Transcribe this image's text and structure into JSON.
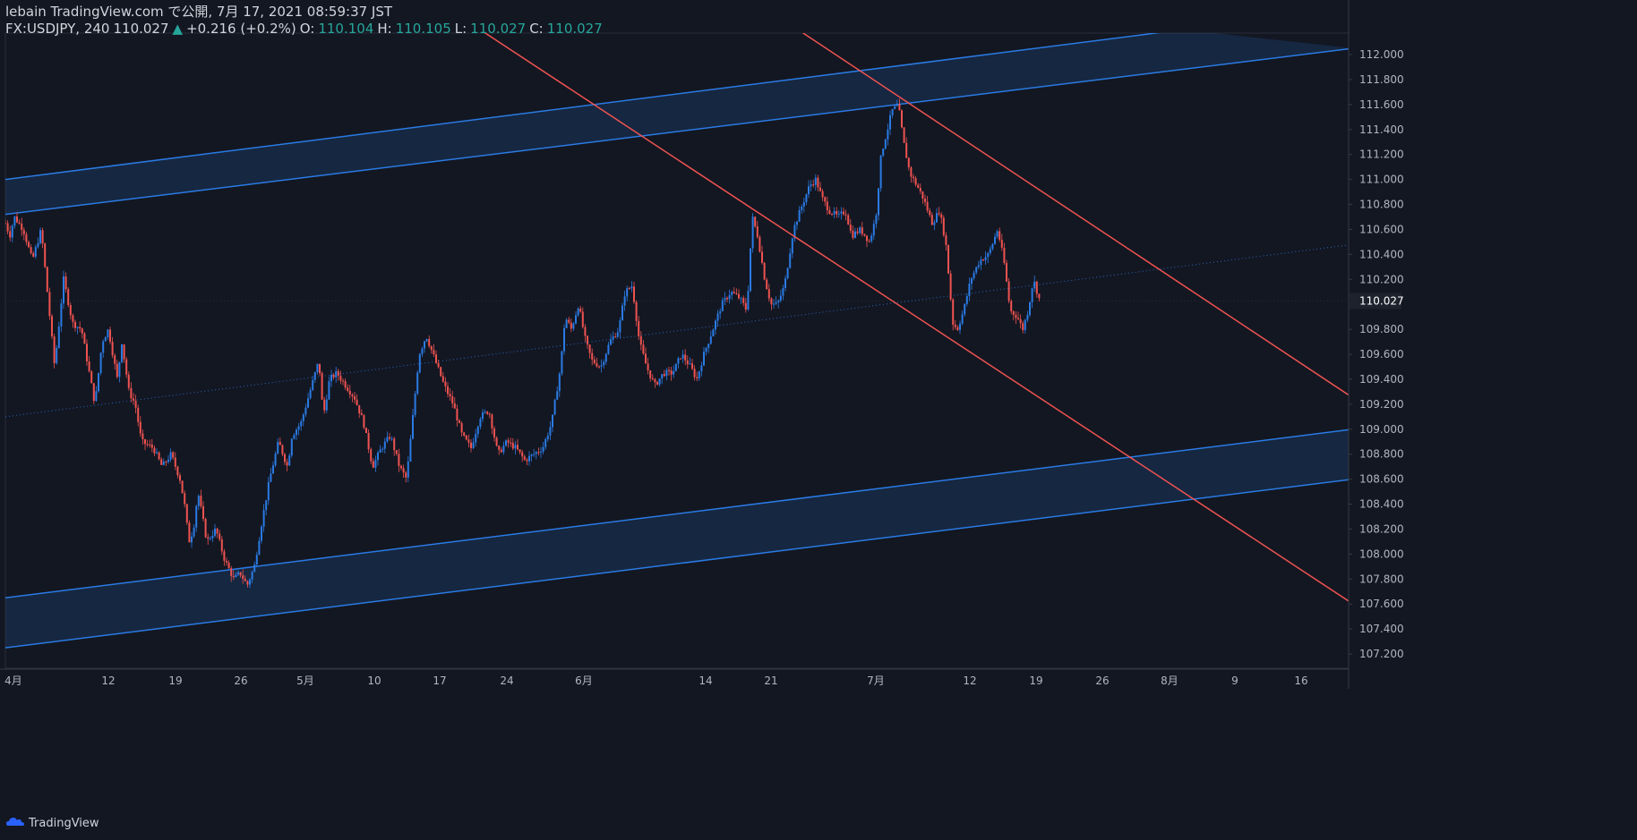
{
  "header": {
    "line1": "lebain TradingView.com で公開, 7月 17, 2021 08:59:37 JST",
    "symbol": "FX:USDJPY, 240",
    "last": "110.027",
    "change": "+0.216 (+0.2%)",
    "o_label": "O:",
    "o_value": "110.104",
    "h_label": "H:",
    "h_value": "110.105",
    "l_label": "L:",
    "l_value": "110.027",
    "c_label": "C:",
    "c_value": "110.027"
  },
  "footer": {
    "brand": "TradingView"
  },
  "colors": {
    "up": "#2a7be4",
    "down": "#ef5350",
    "channel": "#2a7be4",
    "trend": "#ef5350",
    "midline": "#2a7be4"
  },
  "chart_data": {
    "type": "candlestick",
    "symbol": "FX:USDJPY",
    "interval": "240",
    "ylim": [
      107.2,
      112.0
    ],
    "y_ticks": [
      "112.000",
      "111.800",
      "111.600",
      "111.400",
      "111.200",
      "111.000",
      "110.800",
      "110.600",
      "110.400",
      "110.200",
      "110.027",
      "109.800",
      "109.600",
      "109.400",
      "109.200",
      "109.000",
      "108.800",
      "108.600",
      "108.400",
      "108.200",
      "108.000",
      "107.800",
      "107.600",
      "107.400",
      "107.200"
    ],
    "current_price": "110.027",
    "x_ticks": [
      "4月",
      "12",
      "19",
      "26",
      "5月",
      "10",
      "17",
      "24",
      "6月",
      "14",
      "21",
      "7月",
      "12",
      "19",
      "26",
      "8月",
      "9",
      "16"
    ],
    "close_path": [
      [
        0,
        110.65
      ],
      [
        5,
        110.55
      ],
      [
        10,
        110.7
      ],
      [
        20,
        110.6
      ],
      [
        30,
        110.35
      ],
      [
        40,
        110.6
      ],
      [
        55,
        109.5
      ],
      [
        65,
        110.2
      ],
      [
        75,
        109.85
      ],
      [
        85,
        109.8
      ],
      [
        95,
        109.4
      ],
      [
        100,
        109.2
      ],
      [
        108,
        109.7
      ],
      [
        115,
        109.8
      ],
      [
        125,
        109.4
      ],
      [
        130,
        109.7
      ],
      [
        138,
        109.3
      ],
      [
        145,
        109.2
      ],
      [
        152,
        108.9
      ],
      [
        165,
        108.85
      ],
      [
        175,
        108.7
      ],
      [
        185,
        108.8
      ],
      [
        195,
        108.6
      ],
      [
        200,
        108.4
      ],
      [
        205,
        108.1
      ],
      [
        210,
        108.2
      ],
      [
        215,
        108.5
      ],
      [
        225,
        108.1
      ],
      [
        235,
        108.2
      ],
      [
        245,
        107.95
      ],
      [
        255,
        107.8
      ],
      [
        262,
        107.85
      ],
      [
        270,
        107.75
      ],
      [
        278,
        107.9
      ],
      [
        285,
        108.2
      ],
      [
        295,
        108.6
      ],
      [
        305,
        108.9
      ],
      [
        315,
        108.7
      ],
      [
        320,
        108.95
      ],
      [
        330,
        109.05
      ],
      [
        340,
        109.3
      ],
      [
        350,
        109.55
      ],
      [
        355,
        109.1
      ],
      [
        362,
        109.4
      ],
      [
        370,
        109.45
      ],
      [
        380,
        109.35
      ],
      [
        390,
        109.25
      ],
      [
        400,
        109.05
      ],
      [
        410,
        108.7
      ],
      [
        420,
        108.85
      ],
      [
        430,
        108.95
      ],
      [
        440,
        108.7
      ],
      [
        448,
        108.6
      ],
      [
        455,
        109.1
      ],
      [
        462,
        109.6
      ],
      [
        470,
        109.75
      ],
      [
        480,
        109.55
      ],
      [
        490,
        109.35
      ],
      [
        500,
        109.2
      ],
      [
        510,
        108.95
      ],
      [
        520,
        108.85
      ],
      [
        530,
        109.1
      ],
      [
        540,
        109.15
      ],
      [
        550,
        108.8
      ],
      [
        560,
        108.9
      ],
      [
        570,
        108.85
      ],
      [
        580,
        108.75
      ],
      [
        590,
        108.8
      ],
      [
        600,
        108.85
      ],
      [
        610,
        109.05
      ],
      [
        620,
        109.5
      ],
      [
        625,
        109.9
      ],
      [
        632,
        109.8
      ],
      [
        640,
        110.0
      ],
      [
        648,
        109.7
      ],
      [
        655,
        109.55
      ],
      [
        665,
        109.5
      ],
      [
        675,
        109.7
      ],
      [
        685,
        109.8
      ],
      [
        692,
        110.1
      ],
      [
        700,
        110.15
      ],
      [
        708,
        109.7
      ],
      [
        716,
        109.5
      ],
      [
        725,
        109.35
      ],
      [
        735,
        109.45
      ],
      [
        745,
        109.45
      ],
      [
        755,
        109.6
      ],
      [
        765,
        109.5
      ],
      [
        772,
        109.4
      ],
      [
        780,
        109.6
      ],
      [
        790,
        109.8
      ],
      [
        800,
        110.0
      ],
      [
        810,
        110.1
      ],
      [
        820,
        110.05
      ],
      [
        828,
        109.95
      ],
      [
        834,
        110.7
      ],
      [
        840,
        110.55
      ],
      [
        848,
        110.2
      ],
      [
        855,
        110.0
      ],
      [
        862,
        110.0
      ],
      [
        870,
        110.15
      ],
      [
        880,
        110.6
      ],
      [
        890,
        110.8
      ],
      [
        898,
        110.95
      ],
      [
        905,
        111.0
      ],
      [
        912,
        110.85
      ],
      [
        920,
        110.75
      ],
      [
        930,
        110.7
      ],
      [
        938,
        110.75
      ],
      [
        945,
        110.55
      ],
      [
        955,
        110.6
      ],
      [
        965,
        110.5
      ],
      [
        972,
        110.7
      ],
      [
        978,
        111.2
      ],
      [
        985,
        111.4
      ],
      [
        990,
        111.55
      ],
      [
        997,
        111.6
      ],
      [
        1003,
        111.3
      ],
      [
        1010,
        111.05
      ],
      [
        1018,
        110.95
      ],
      [
        1025,
        110.85
      ],
      [
        1035,
        110.65
      ],
      [
        1043,
        110.75
      ],
      [
        1050,
        110.5
      ],
      [
        1058,
        109.85
      ],
      [
        1063,
        109.8
      ],
      [
        1070,
        109.95
      ],
      [
        1078,
        110.2
      ],
      [
        1088,
        110.35
      ],
      [
        1098,
        110.4
      ],
      [
        1108,
        110.6
      ],
      [
        1115,
        110.35
      ],
      [
        1122,
        109.95
      ],
      [
        1130,
        109.9
      ],
      [
        1136,
        109.8
      ],
      [
        1142,
        109.95
      ],
      [
        1148,
        110.2
      ],
      [
        1155,
        110.03
      ]
    ],
    "channel_upper_band": {
      "upper": [
        [
          0,
          111.0
        ],
        [
          1315,
          112.2
        ]
      ],
      "lower": [
        [
          0,
          110.72
        ],
        [
          1505,
          112.05
        ]
      ]
    },
    "channel_lower_band": {
      "upper": [
        [
          0,
          107.65
        ],
        [
          1505,
          109.0
        ]
      ],
      "lower": [
        [
          0,
          107.25
        ],
        [
          1505,
          108.6
        ]
      ]
    },
    "channel_midline": [
      [
        0,
        109.1
      ],
      [
        1505,
        110.48
      ]
    ],
    "downtrend_upper": [
      [
        885,
        112.2
      ],
      [
        1505,
        109.25
      ]
    ],
    "downtrend_lower": [
      [
        530,
        112.2
      ],
      [
        1505,
        107.6
      ]
    ]
  }
}
